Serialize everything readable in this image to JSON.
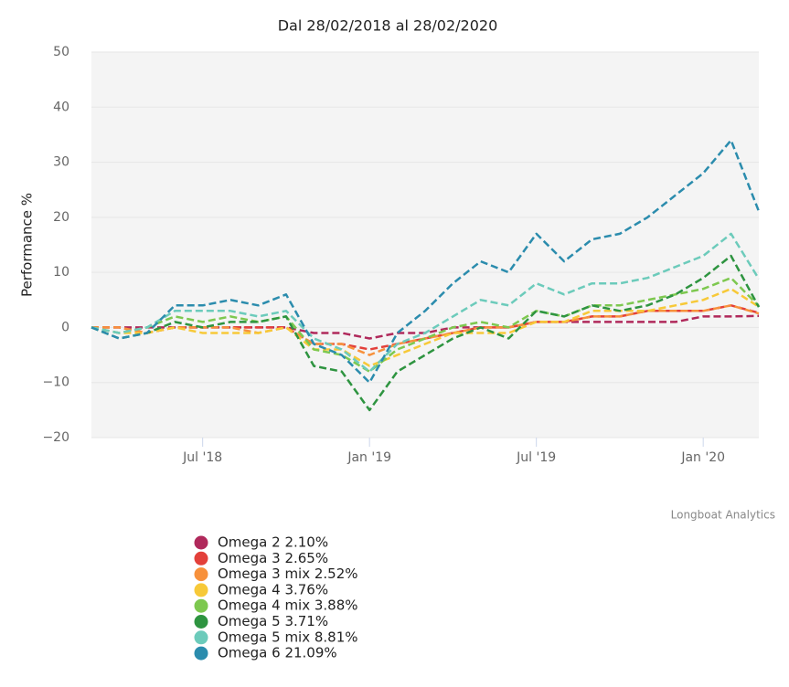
{
  "chart_data": {
    "type": "line",
    "title": "Dal 28/02/2018 al 28/02/2020",
    "y_label": "Performance %",
    "credits": "Longboat Analytics",
    "x": [
      "2018-03",
      "2018-04",
      "2018-05",
      "2018-06",
      "2018-07",
      "2018-08",
      "2018-09",
      "2018-10",
      "2018-11",
      "2018-12",
      "2019-01",
      "2019-02",
      "2019-03",
      "2019-04",
      "2019-05",
      "2019-06",
      "2019-07",
      "2019-08",
      "2019-09",
      "2019-10",
      "2019-11",
      "2019-12",
      "2020-01",
      "2020-02",
      "2020-03"
    ],
    "xlim": [
      "2018-03",
      "2020-03"
    ],
    "xticks": [
      {
        "value": "2018-07",
        "label": "Jul '18"
      },
      {
        "value": "2019-01",
        "label": "Jan '19"
      },
      {
        "value": "2019-07",
        "label": "Jul '19"
      },
      {
        "value": "2020-01",
        "label": "Jan '20"
      }
    ],
    "ylim": [
      -20,
      50
    ],
    "yticks": [
      {
        "value": -20,
        "label": "−20"
      },
      {
        "value": -10,
        "label": "−10"
      },
      0,
      10,
      20,
      30,
      40,
      50
    ],
    "grid": true,
    "dashed": true,
    "series": [
      {
        "name": "Omega 2 2.10%",
        "color": "#b0295b",
        "values": [
          0,
          0,
          0,
          0,
          0,
          0,
          0,
          0,
          -1,
          -1,
          -2,
          -1,
          -1,
          0,
          0,
          0,
          1,
          1,
          1,
          1,
          1,
          1,
          2,
          2,
          2.1
        ]
      },
      {
        "name": "Omega 3 2.65%",
        "color": "#e3403a",
        "values": [
          0,
          0,
          -1,
          0,
          0,
          0,
          0,
          0,
          -3,
          -3,
          -4,
          -3,
          -2,
          -1,
          0,
          0,
          1,
          1,
          2,
          2,
          3,
          3,
          3,
          4,
          2.65
        ]
      },
      {
        "name": "Omega 3 mix 2.52%",
        "color": "#f7913c",
        "values": [
          0,
          0,
          -1,
          0,
          0,
          0,
          -1,
          0,
          -3,
          -3,
          -5,
          -3,
          -2,
          -1,
          0,
          0,
          1,
          1,
          2,
          2,
          3,
          3,
          3,
          4,
          2.52
        ]
      },
      {
        "name": "Omega 4 3.76%",
        "color": "#f7c938",
        "values": [
          0,
          -1,
          -1,
          0,
          -1,
          -1,
          -1,
          0,
          -4,
          -4,
          -7,
          -5,
          -3,
          -1,
          -1,
          -1,
          1,
          1,
          3,
          3,
          3,
          4,
          5,
          7,
          3.76
        ]
      },
      {
        "name": "Omega 4 mix 3.88%",
        "color": "#7dc84f",
        "values": [
          0,
          -1,
          0,
          2,
          1,
          2,
          1,
          2,
          -4,
          -5,
          -8,
          -4,
          -2,
          0,
          1,
          0,
          3,
          2,
          4,
          4,
          5,
          6,
          7,
          9,
          3.88
        ]
      },
      {
        "name": "Omega 5 3.71%",
        "color": "#2e9440",
        "values": [
          0,
          -2,
          -1,
          1,
          0,
          1,
          1,
          2,
          -7,
          -8,
          -15,
          -8,
          -5,
          -2,
          0,
          -2,
          3,
          2,
          4,
          3,
          4,
          6,
          9,
          13,
          3.71
        ]
      },
      {
        "name": "Omega 5 mix 8.81%",
        "color": "#6ccbbb",
        "values": [
          0,
          -1,
          0,
          3,
          3,
          3,
          2,
          3,
          -2,
          -4,
          -8,
          -3,
          -1,
          2,
          5,
          4,
          8,
          6,
          8,
          8,
          9,
          11,
          13,
          17,
          8.81
        ]
      },
      {
        "name": "Omega 6 21.09%",
        "color": "#2b8cad",
        "values": [
          0,
          -2,
          -1,
          4,
          4,
          5,
          4,
          6,
          -3,
          -5,
          -10,
          -1,
          3,
          8,
          12,
          10,
          17,
          12,
          16,
          17,
          20,
          24,
          28,
          34,
          21.09
        ]
      }
    ]
  }
}
